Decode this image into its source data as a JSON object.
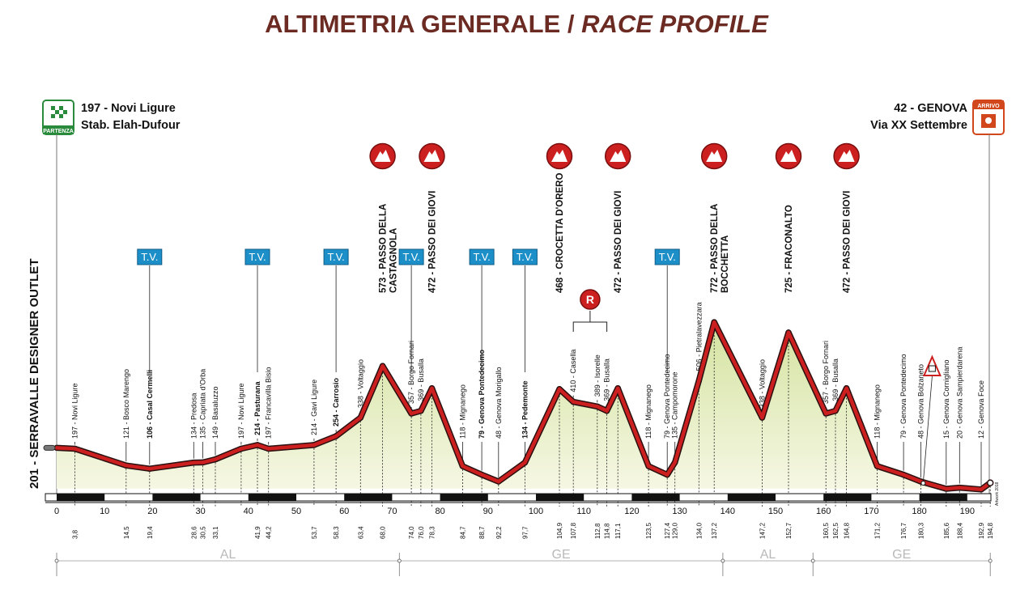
{
  "title": {
    "main": "ALTIMETRIA GENERALE / ",
    "italic": "RACE PROFILE"
  },
  "start": {
    "line1": "197 - Novi Ligure",
    "line2": "Stab. Elah-Dufour",
    "badge": "PARTENZA"
  },
  "finish": {
    "line1": "42 - GENOVA",
    "line2": "Via XX Settembre",
    "badge": "ARRIVO"
  },
  "side_label": "201 - SERRAVALLE DESIGNER OUTLET",
  "tv_label": "T.V.",
  "r_label": "R",
  "credit": "Artwork 2018",
  "colors": {
    "profile_line": "#cc1f1f",
    "fill_top": "#d4e3a0",
    "fill_bottom": "#f6f7e4",
    "title": "#6b2a22",
    "tv_box": "#1c8fc9",
    "climb_icon": "#cc1f1f",
    "region": "#b9b9b9"
  },
  "chart_data": {
    "type": "area",
    "title": "ALTIMETRIA GENERALE / RACE PROFILE",
    "xlabel": "",
    "ylabel": "",
    "xlim": [
      0,
      194.8
    ],
    "ylim": [
      0,
      800
    ],
    "x_ticks": [
      0,
      10,
      20,
      30,
      40,
      50,
      60,
      70,
      80,
      90,
      100,
      110,
      120,
      130,
      140,
      150,
      160,
      170,
      180,
      190
    ],
    "points": [
      {
        "km": 0,
        "alt": 201,
        "label": "",
        "km_label": ""
      },
      {
        "km": 3.8,
        "alt": 197,
        "label": "197 - Novi Ligure",
        "km_label": "3,8"
      },
      {
        "km": 14.5,
        "alt": 121,
        "label": "121 - Bosco Marengo",
        "km_label": "14,5"
      },
      {
        "km": 19.4,
        "alt": 106,
        "label": "106 - Casal Cermelli",
        "km_label": "19,4",
        "bold": true
      },
      {
        "km": 28.6,
        "alt": 134,
        "label": "134 - Predosa",
        "km_label": "28,6"
      },
      {
        "km": 30.5,
        "alt": 135,
        "label": "135 - Capriata d'Orba",
        "km_label": "30,5"
      },
      {
        "km": 33.1,
        "alt": 149,
        "label": "149 - Basaluzzo",
        "km_label": "33,1"
      },
      {
        "km": 38.5,
        "alt": 197,
        "label": "197 - Novi Ligure",
        "km_label": ""
      },
      {
        "km": 41.9,
        "alt": 214,
        "label": "214 - Pasturana",
        "km_label": "41,9",
        "bold": true
      },
      {
        "km": 44.2,
        "alt": 197,
        "label": "197 - Francavilla Bisio",
        "km_label": "44,2"
      },
      {
        "km": 53.7,
        "alt": 214,
        "label": "214 - Gavi Ligure",
        "km_label": "53,7"
      },
      {
        "km": 58.3,
        "alt": 254,
        "label": "254 - Carrosio",
        "km_label": "58,3",
        "bold": true
      },
      {
        "km": 63.4,
        "alt": 338,
        "label": "338 - Voltaggio",
        "km_label": "63,4"
      },
      {
        "km": 68.0,
        "alt": 573,
        "label": "",
        "km_label": "68,0"
      },
      {
        "km": 74.0,
        "alt": 357,
        "label": "357 - Borgo Fornari",
        "km_label": "74,0"
      },
      {
        "km": 76.0,
        "alt": 369,
        "label": "369 - Busalla",
        "km_label": "76,0"
      },
      {
        "km": 78.3,
        "alt": 472,
        "label": "",
        "km_label": "78,3"
      },
      {
        "km": 84.7,
        "alt": 118,
        "label": "118 - Mignanego",
        "km_label": "84,7"
      },
      {
        "km": 88.7,
        "alt": 79,
        "label": "79 - Genova Pontedecimo",
        "km_label": "88,7",
        "bold": true
      },
      {
        "km": 92.2,
        "alt": 48,
        "label": "48 - Genova Morigallo",
        "km_label": "92,2"
      },
      {
        "km": 97.7,
        "alt": 134,
        "label": "134 - Pedemonte",
        "km_label": "97,7",
        "bold": true
      },
      {
        "km": 104.9,
        "alt": 468,
        "label": "",
        "km_label": "104,9"
      },
      {
        "km": 107.8,
        "alt": 410,
        "label": "410 - Casella",
        "km_label": "107,8"
      },
      {
        "km": 112.8,
        "alt": 389,
        "label": "389 - Isorelle",
        "km_label": "112,8"
      },
      {
        "km": 114.8,
        "alt": 369,
        "label": "369 - Busalla",
        "km_label": "114,8"
      },
      {
        "km": 117.1,
        "alt": 472,
        "label": "",
        "km_label": "117,1"
      },
      {
        "km": 123.5,
        "alt": 118,
        "label": "118 - Mignanego",
        "km_label": "123,5"
      },
      {
        "km": 127.4,
        "alt": 79,
        "label": "79 - Genova Pontedecimo",
        "km_label": "127,4"
      },
      {
        "km": 129.0,
        "alt": 135,
        "label": "135 - Campomorone",
        "km_label": "129,0"
      },
      {
        "km": 134.0,
        "alt": 506,
        "label": "506 - Pietralavezzara",
        "km_label": "134,0"
      },
      {
        "km": 137.2,
        "alt": 772,
        "label": "",
        "km_label": "137,2"
      },
      {
        "km": 147.2,
        "alt": 338,
        "label": "338 - Voltaggio",
        "km_label": "147,2"
      },
      {
        "km": 152.7,
        "alt": 725,
        "label": "",
        "km_label": "152,7"
      },
      {
        "km": 160.5,
        "alt": 357,
        "label": "357 - Borgo Fornari",
        "km_label": "160,5"
      },
      {
        "km": 162.5,
        "alt": 369,
        "label": "369 - Busalla",
        "km_label": "162,5"
      },
      {
        "km": 164.8,
        "alt": 472,
        "label": "",
        "km_label": "164,8"
      },
      {
        "km": 171.2,
        "alt": 118,
        "label": "118 - Mignanego",
        "km_label": "171,2"
      },
      {
        "km": 176.7,
        "alt": 79,
        "label": "79 - Genova Pontedecimo",
        "km_label": "176,7"
      },
      {
        "km": 180.3,
        "alt": 48,
        "label": "48 - Genova Bolzaneto",
        "km_label": "180,3"
      },
      {
        "km": 185.6,
        "alt": 15,
        "label": "15 - Genova Cornigliano",
        "km_label": "185,6"
      },
      {
        "km": 188.4,
        "alt": 20,
        "label": "20 - Genova Sampierdarena",
        "km_label": "188,4"
      },
      {
        "km": 192.9,
        "alt": 12,
        "label": "12 - Genova Foce",
        "km_label": "192,9"
      },
      {
        "km": 194.8,
        "alt": 42,
        "label": "",
        "km_label": "194,8"
      }
    ],
    "climbs": [
      {
        "km": 68.0,
        "lines": [
          "573 - PASSO DELLA",
          "CASTAGNOLA"
        ]
      },
      {
        "km": 78.3,
        "lines": [
          "472 - PASSO DEI GIOVI"
        ]
      },
      {
        "km": 104.9,
        "lines": [
          "468 - CROCETTA D'ORERO"
        ]
      },
      {
        "km": 117.1,
        "lines": [
          "472 - PASSO DEI GIOVI"
        ]
      },
      {
        "km": 137.2,
        "lines": [
          "772 - PASSO DELLA",
          "BOCCHETTA"
        ]
      },
      {
        "km": 152.7,
        "lines": [
          "725 - FRACONALTO"
        ]
      },
      {
        "km": 164.8,
        "lines": [
          "472 - PASSO DEI GIOVI"
        ]
      }
    ],
    "intermediate_sprints": [
      19.4,
      41.9,
      58.3,
      74.0,
      88.7,
      97.7,
      127.4
    ],
    "feed_zone": [
      107.8,
      114.8
    ],
    "level_crossing_km": 180.3,
    "regions": [
      {
        "name": "AL",
        "from": 0,
        "to": 71.5
      },
      {
        "name": "GE",
        "from": 71.5,
        "to": 139.0
      },
      {
        "name": "AL",
        "from": 139.0,
        "to": 157.8
      },
      {
        "name": "GE",
        "from": 157.8,
        "to": 194.8
      }
    ]
  }
}
